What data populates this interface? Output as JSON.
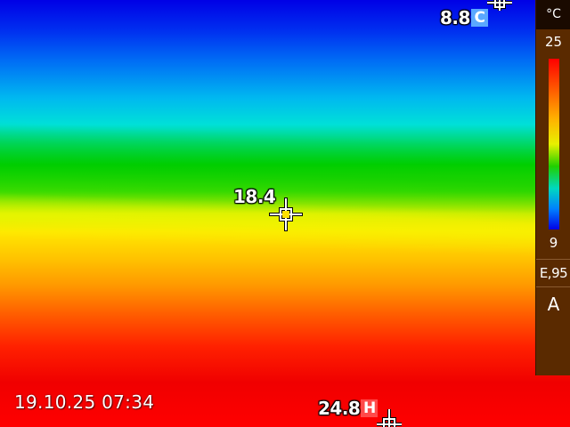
{
  "cold_spot": {
    "value": "8.8",
    "badge": "C",
    "badge_color": "#5aa8ff"
  },
  "hot_spot": {
    "value": "24.8",
    "badge": "H",
    "badge_color": "#ff4a4a"
  },
  "center_spot": {
    "value": "18.4"
  },
  "scale": {
    "unit": "°C",
    "max": "25",
    "min": "9",
    "emissivity": "E,95",
    "mode": "A"
  },
  "timestamp": "19.10.25 07:34",
  "icons": {
    "center_marker": "crosshair-icon",
    "cold_marker": "crosshair-icon",
    "hot_marker": "crosshair-icon"
  }
}
